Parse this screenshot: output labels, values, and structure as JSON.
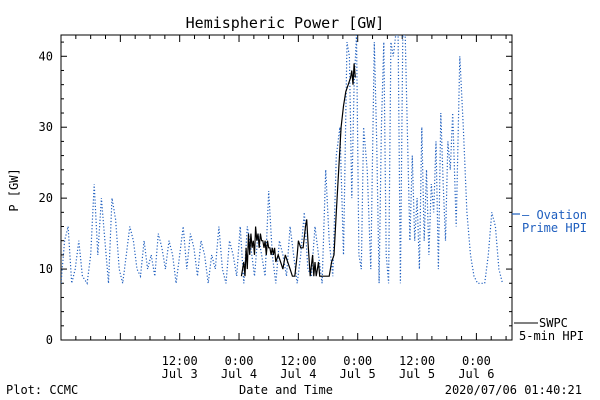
{
  "chart_data": {
    "type": "line",
    "title": "Hemispheric Power [GW]",
    "xlabel": "Date and Time",
    "ylabel": "P [GW]",
    "ylim": [
      0,
      43
    ],
    "yticks": [
      0,
      10,
      20,
      30,
      40
    ],
    "xlim": [
      -0.5,
      3.3
    ],
    "x_unit": "days since Jul 3 00:00",
    "xticks": [
      {
        "x": 0.5,
        "l1": "12:00",
        "l2": "Jul 3"
      },
      {
        "x": 1.0,
        "l1": "0:00",
        "l2": "Jul 4"
      },
      {
        "x": 1.5,
        "l1": "12:00",
        "l2": "Jul 4"
      },
      {
        "x": 2.0,
        "l1": "0:00",
        "l2": "Jul 5"
      },
      {
        "x": 2.5,
        "l1": "12:00",
        "l2": "Jul 5"
      },
      {
        "x": 3.0,
        "l1": "0:00",
        "l2": "Jul 6"
      }
    ],
    "grid": false,
    "legend_position": "right",
    "series": [
      {
        "name": "Ovation Prime HPI",
        "color": "#1f5fbf",
        "style": "dotted",
        "points": [
          [
            -0.5,
            8
          ],
          [
            -0.47,
            14
          ],
          [
            -0.44,
            16
          ],
          [
            -0.41,
            8
          ],
          [
            -0.38,
            10
          ],
          [
            -0.35,
            14
          ],
          [
            -0.32,
            9
          ],
          [
            -0.28,
            8
          ],
          [
            -0.25,
            12
          ],
          [
            -0.22,
            22
          ],
          [
            -0.19,
            12
          ],
          [
            -0.16,
            20
          ],
          [
            -0.13,
            14
          ],
          [
            -0.1,
            8
          ],
          [
            -0.07,
            20
          ],
          [
            -0.04,
            17
          ],
          [
            -0.01,
            10
          ],
          [
            0.02,
            8
          ],
          [
            0.05,
            12
          ],
          [
            0.08,
            16
          ],
          [
            0.11,
            14
          ],
          [
            0.14,
            10
          ],
          [
            0.17,
            9
          ],
          [
            0.2,
            14
          ],
          [
            0.23,
            10
          ],
          [
            0.26,
            12
          ],
          [
            0.29,
            9
          ],
          [
            0.32,
            15
          ],
          [
            0.35,
            13
          ],
          [
            0.38,
            10
          ],
          [
            0.41,
            14
          ],
          [
            0.44,
            12
          ],
          [
            0.47,
            8
          ],
          [
            0.5,
            12
          ],
          [
            0.53,
            16
          ],
          [
            0.56,
            10
          ],
          [
            0.59,
            15
          ],
          [
            0.62,
            13
          ],
          [
            0.65,
            9
          ],
          [
            0.68,
            14
          ],
          [
            0.71,
            12
          ],
          [
            0.74,
            8
          ],
          [
            0.77,
            12
          ],
          [
            0.8,
            10
          ],
          [
            0.83,
            16
          ],
          [
            0.86,
            10
          ],
          [
            0.89,
            8
          ],
          [
            0.92,
            14
          ],
          [
            0.95,
            12
          ],
          [
            0.98,
            9
          ],
          [
            1.01,
            16
          ],
          [
            1.04,
            8
          ],
          [
            1.07,
            16
          ],
          [
            1.1,
            13
          ],
          [
            1.13,
            9
          ],
          [
            1.16,
            15
          ],
          [
            1.19,
            12
          ],
          [
            1.22,
            9
          ],
          [
            1.25,
            21
          ],
          [
            1.28,
            12
          ],
          [
            1.31,
            8
          ],
          [
            1.34,
            14
          ],
          [
            1.37,
            12
          ],
          [
            1.4,
            9
          ],
          [
            1.43,
            16
          ],
          [
            1.46,
            12
          ],
          [
            1.49,
            8
          ],
          [
            1.52,
            12
          ],
          [
            1.55,
            18
          ],
          [
            1.58,
            10
          ],
          [
            1.61,
            9
          ],
          [
            1.64,
            16
          ],
          [
            1.67,
            12
          ],
          [
            1.7,
            8
          ],
          [
            1.73,
            24
          ],
          [
            1.76,
            14
          ],
          [
            1.79,
            9
          ],
          [
            1.82,
            26
          ],
          [
            1.85,
            30
          ],
          [
            1.88,
            12
          ],
          [
            1.91,
            42
          ],
          [
            1.93,
            40
          ],
          [
            1.95,
            20
          ],
          [
            1.97,
            36
          ],
          [
            1.99,
            43
          ],
          [
            2.01,
            12
          ],
          [
            2.03,
            10
          ],
          [
            2.05,
            30
          ],
          [
            2.08,
            24
          ],
          [
            2.11,
            10
          ],
          [
            2.14,
            42
          ],
          [
            2.16,
            28
          ],
          [
            2.18,
            8
          ],
          [
            2.2,
            30
          ],
          [
            2.22,
            42
          ],
          [
            2.24,
            12
          ],
          [
            2.26,
            8
          ],
          [
            2.28,
            42
          ],
          [
            2.3,
            40
          ],
          [
            2.32,
            43
          ],
          [
            2.34,
            43
          ],
          [
            2.36,
            8
          ],
          [
            2.38,
            43
          ],
          [
            2.4,
            43
          ],
          [
            2.42,
            28
          ],
          [
            2.44,
            14
          ],
          [
            2.46,
            26
          ],
          [
            2.48,
            14
          ],
          [
            2.5,
            20
          ],
          [
            2.52,
            10
          ],
          [
            2.54,
            30
          ],
          [
            2.56,
            14
          ],
          [
            2.58,
            24
          ],
          [
            2.6,
            12
          ],
          [
            2.62,
            22
          ],
          [
            2.64,
            18
          ],
          [
            2.66,
            28
          ],
          [
            2.68,
            10
          ],
          [
            2.7,
            32
          ],
          [
            2.72,
            22
          ],
          [
            2.74,
            14
          ],
          [
            2.76,
            28
          ],
          [
            2.78,
            24
          ],
          [
            2.8,
            32
          ],
          [
            2.83,
            16
          ],
          [
            2.86,
            40
          ],
          [
            2.89,
            30
          ],
          [
            2.92,
            18
          ],
          [
            2.95,
            12
          ],
          [
            2.98,
            9
          ],
          [
            3.01,
            8
          ],
          [
            3.04,
            8
          ],
          [
            3.07,
            8
          ],
          [
            3.1,
            12
          ],
          [
            3.13,
            18
          ],
          [
            3.16,
            16
          ],
          [
            3.19,
            10
          ],
          [
            3.22,
            8
          ]
        ]
      },
      {
        "name": "SWPC 5-min HPI",
        "color": "#000000",
        "style": "solid",
        "points": [
          [
            1.02,
            9
          ],
          [
            1.04,
            11
          ],
          [
            1.05,
            9
          ],
          [
            1.06,
            13
          ],
          [
            1.07,
            10
          ],
          [
            1.08,
            15
          ],
          [
            1.09,
            12
          ],
          [
            1.1,
            15
          ],
          [
            1.11,
            13
          ],
          [
            1.12,
            14
          ],
          [
            1.13,
            12
          ],
          [
            1.14,
            16
          ],
          [
            1.15,
            14
          ],
          [
            1.16,
            15
          ],
          [
            1.17,
            13
          ],
          [
            1.18,
            15
          ],
          [
            1.19,
            14
          ],
          [
            1.2,
            14
          ],
          [
            1.21,
            13
          ],
          [
            1.22,
            14
          ],
          [
            1.23,
            12
          ],
          [
            1.24,
            14
          ],
          [
            1.25,
            13
          ],
          [
            1.26,
            13
          ],
          [
            1.27,
            12
          ],
          [
            1.28,
            13
          ],
          [
            1.29,
            12
          ],
          [
            1.3,
            13
          ],
          [
            1.31,
            11
          ],
          [
            1.33,
            12
          ],
          [
            1.35,
            11
          ],
          [
            1.37,
            10
          ],
          [
            1.39,
            12
          ],
          [
            1.41,
            11
          ],
          [
            1.43,
            10
          ],
          [
            1.45,
            9
          ],
          [
            1.47,
            9
          ],
          [
            1.49,
            12
          ],
          [
            1.5,
            14
          ],
          [
            1.52,
            13
          ],
          [
            1.54,
            13
          ],
          [
            1.56,
            16
          ],
          [
            1.57,
            17
          ],
          [
            1.58,
            14
          ],
          [
            1.6,
            9
          ],
          [
            1.62,
            12
          ],
          [
            1.63,
            9
          ],
          [
            1.64,
            11
          ],
          [
            1.65,
            9
          ],
          [
            1.66,
            10
          ],
          [
            1.67,
            11
          ],
          [
            1.68,
            9
          ],
          [
            1.7,
            9
          ],
          [
            1.72,
            9
          ],
          [
            1.74,
            9
          ],
          [
            1.76,
            9
          ],
          [
            1.78,
            11
          ],
          [
            1.8,
            12
          ],
          [
            1.82,
            18
          ],
          [
            1.84,
            24
          ],
          [
            1.86,
            30
          ],
          [
            1.88,
            33
          ],
          [
            1.9,
            35
          ],
          [
            1.92,
            36
          ],
          [
            1.94,
            37
          ],
          [
            1.95,
            38
          ],
          [
            1.96,
            36
          ],
          [
            1.97,
            39
          ],
          [
            1.98,
            37
          ]
        ]
      }
    ]
  },
  "legend": {
    "ovation_line1": "— Ovation",
    "ovation_line2": "Prime HPI",
    "swpc_line1": "SWPC",
    "swpc_line2": "5-min HPI"
  },
  "footer": {
    "plot_by": "Plot: CCMC",
    "xlabel": "Date and Time",
    "timestamp": "2020/07/06 01:40:21"
  }
}
